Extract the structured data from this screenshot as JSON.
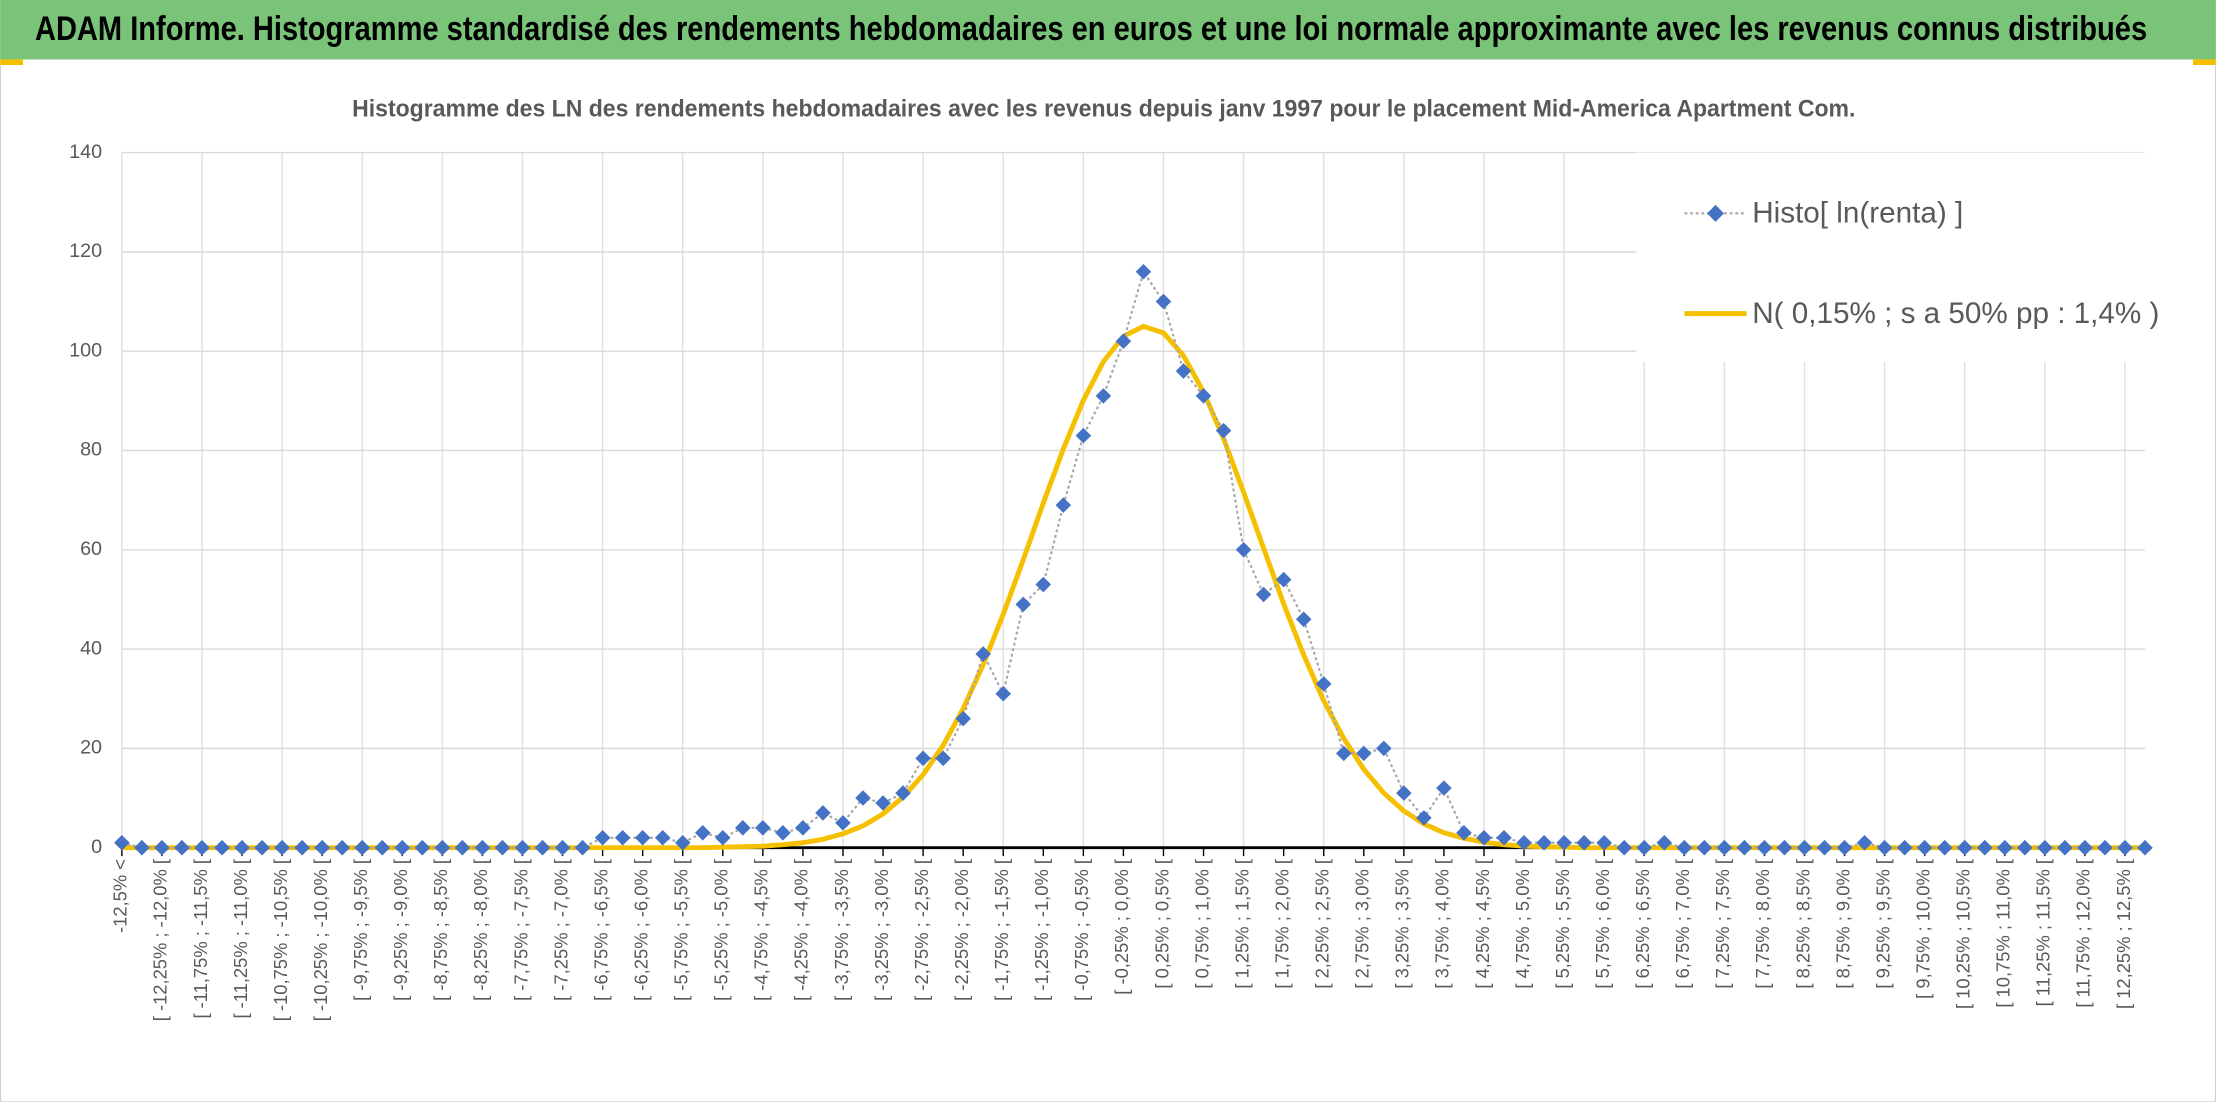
{
  "header": {
    "title": "ADAM Informe. Histogramme standardisé des rendements hebdomadaires en euros et une loi normale approximante avec les revenus connus distribués"
  },
  "chart_data": {
    "type": "line",
    "title": "Histogramme des LN des rendements hebdomadaires avec les revenus depuis janv 1997 pour le placement Mid-America Apartment Com.",
    "categories": [
      "-12,5% <",
      null,
      "[ -12,25% ; -12,0% [",
      null,
      "[ -11,75% ; -11,5% [",
      null,
      "[ -11,25% ; -11,0% [",
      null,
      "[ -10,75% ; -10,5% [",
      null,
      "[ -10,25% ; -10,0% [",
      null,
      "[ -9,75% ; -9,5% [",
      null,
      "[ -9,25% ; -9,0% [",
      null,
      "[ -8,75% ; -8,5% [",
      null,
      "[ -8,25% ; -8,0% [",
      null,
      "[ -7,75% ; -7,5% [",
      null,
      "[ -7,25% ; -7,0% [",
      null,
      "[ -6,75% ; -6,5% [",
      null,
      "[ -6,25% ; -6,0% [",
      null,
      "[ -5,75% ; -5,5% [",
      null,
      "[ -5,25% ; -5,0% [",
      null,
      "[ -4,75% ; -4,5% [",
      null,
      "[ -4,25% ; -4,0% [",
      null,
      "[ -3,75% ; -3,5% [",
      null,
      "[ -3,25% ; -3,0% [",
      null,
      "[ -2,75% ; -2,5% [",
      null,
      "[ -2,25% ; -2,0% [",
      null,
      "[ -1,75% ; -1,5% [",
      null,
      "[ -1,25% ; -1,0% [",
      null,
      "[ -0,75% ; -0,5% [",
      null,
      "[ -0,25% ; 0,0% [",
      null,
      "[ 0,25% ; 0,5% [",
      null,
      "[ 0,75% ; 1,0% [",
      null,
      "[ 1,25% ; 1,5% [",
      null,
      "[ 1,75% ; 2,0% [",
      null,
      "[ 2,25% ; 2,5% [",
      null,
      "[ 2,75% ; 3,0% [",
      null,
      "[ 3,25% ; 3,5% [",
      null,
      "[ 3,75% ; 4,0% [",
      null,
      "[ 4,25% ; 4,5% [",
      null,
      "[ 4,75% ; 5,0% [",
      null,
      "[ 5,25% ; 5,5% [",
      null,
      "[ 5,75% ; 6,0% [",
      null,
      "[ 6,25% ; 6,5% [",
      null,
      "[ 6,75% ; 7,0% [",
      null,
      "[ 7,25% ; 7,5% [",
      null,
      "[ 7,75% ; 8,0% [",
      null,
      "[ 8,25% ; 8,5% [",
      null,
      "[ 8,75% ; 9,0% [",
      null,
      "[ 9,25% ; 9,5% [",
      null,
      "[ 9,75% ; 10,0% [",
      null,
      "[ 10,25% ; 10,5% [",
      null,
      "[ 10,75% ; 11,0% [",
      null,
      "[ 11,25% ; 11,5% [",
      null,
      "[ 11,75% ; 12,0% [",
      null,
      "[ 12,25% ; 12,5% [",
      null
    ],
    "series": [
      {
        "name": "Histo[ ln(renta) ]",
        "color": "#4472c4",
        "line_color": "#a6a6a6",
        "values": [
          1,
          0,
          0,
          0,
          0,
          0,
          0,
          0,
          0,
          0,
          0,
          0,
          0,
          0,
          0,
          0,
          0,
          0,
          0,
          0,
          0,
          0,
          0,
          0,
          2,
          2,
          2,
          2,
          1,
          3,
          2,
          4,
          4,
          3,
          4,
          7,
          5,
          10,
          9,
          11,
          18,
          18,
          26,
          39,
          31,
          49,
          53,
          69,
          83,
          91,
          102,
          116,
          110,
          96,
          91,
          84,
          60,
          51,
          54,
          46,
          33,
          19,
          19,
          20,
          11,
          6,
          12,
          3,
          2,
          2,
          1,
          1,
          1,
          1,
          1,
          0,
          0,
          1,
          0,
          0,
          0,
          0,
          0,
          0,
          0,
          0,
          0,
          1,
          0,
          0,
          0,
          0,
          0,
          0,
          0,
          0,
          0,
          0,
          0,
          0,
          0,
          0
        ]
      },
      {
        "name": "N( 0,15% ; s a 50% pp : 1,4% )",
        "color": "#f5c000",
        "values": [
          0,
          0,
          0,
          0,
          0,
          0,
          0,
          0,
          0,
          0,
          0,
          0,
          0,
          0,
          0,
          0,
          0,
          0,
          0,
          0,
          0,
          0,
          0,
          0,
          0,
          0,
          0,
          0,
          0,
          0,
          0.1,
          0.2,
          0.3,
          0.6,
          1.0,
          1.7,
          2.8,
          4.4,
          6.8,
          10.2,
          14.7,
          20.6,
          28,
          36.9,
          47,
          58,
          69.4,
          80.3,
          90.1,
          97.9,
          103,
          105,
          103.7,
          99.1,
          91.8,
          82.4,
          71.6,
          60.3,
          49.1,
          38.8,
          29.6,
          22,
          15.8,
          11,
          7.4,
          4.8,
          3,
          1.9,
          1.1,
          0.6,
          0.3,
          0.2,
          0.1,
          0,
          0,
          0,
          0,
          0,
          0,
          0,
          0,
          0,
          0,
          0,
          0,
          0,
          0,
          0,
          0,
          0,
          0,
          0,
          0,
          0,
          0,
          0,
          0,
          0,
          0,
          0,
          0,
          0
        ]
      }
    ],
    "ylim": [
      0,
      140
    ],
    "yticks": [
      0,
      20,
      40,
      60,
      80,
      100,
      120,
      140
    ],
    "grid": true,
    "legend": "top-right"
  }
}
